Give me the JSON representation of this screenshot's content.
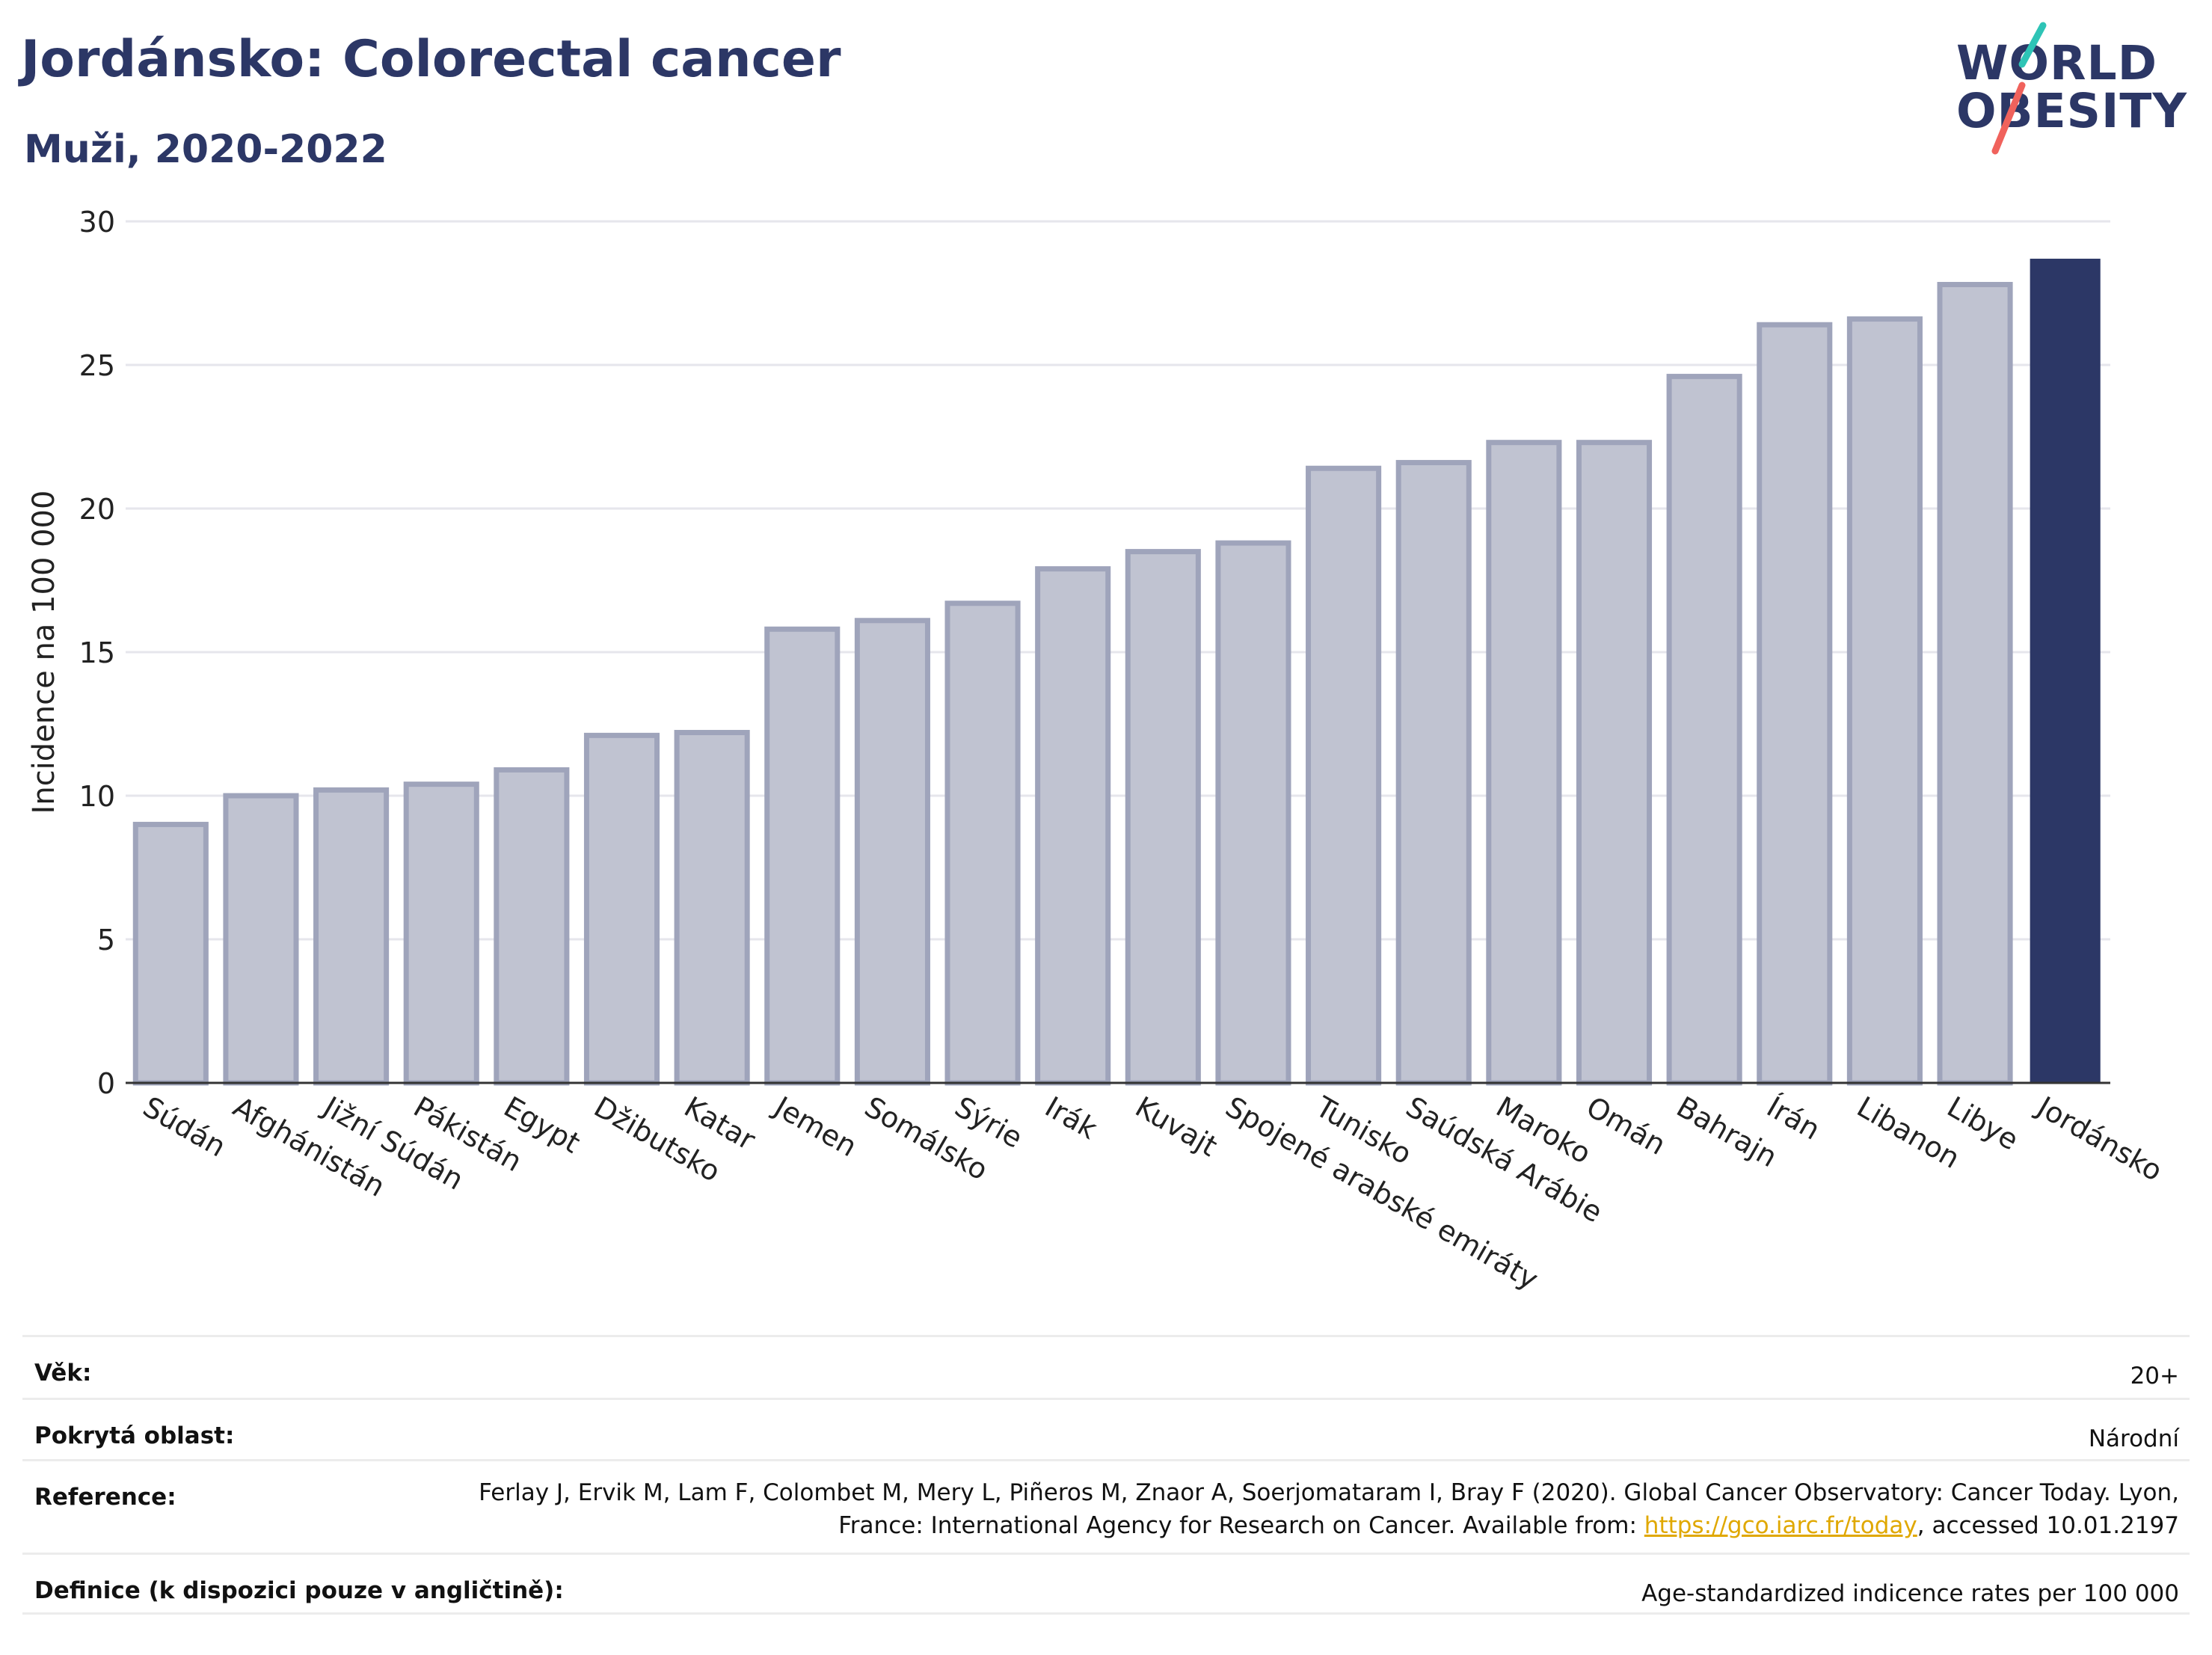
{
  "header": {
    "title": "Jordánsko: Colorectal cancer",
    "subtitle": "Muži, 2020-2022"
  },
  "logo": {
    "line1": "WORLD",
    "line2": "OBESITY",
    "accent_colors": [
      "#2ec4b6",
      "#f0625c"
    ]
  },
  "chart_data": {
    "type": "bar",
    "title": "",
    "xlabel": "",
    "ylabel": "Incidence na 100 000",
    "ylim": [
      0,
      30
    ],
    "yticks": [
      0,
      5,
      10,
      15,
      20,
      25,
      30
    ],
    "grid": true,
    "categories": [
      "Súdán",
      "Afghánistán",
      "Jižní Súdán",
      "Pákistán",
      "Egypt",
      "Džibutsko",
      "Katar",
      "Jemen",
      "Somálsko",
      "Sýrie",
      "Irák",
      "Kuvajt",
      "Spojené arabské emiráty",
      "Tunisko",
      "Saúdská Arábie",
      "Maroko",
      "Omán",
      "Bahrajn",
      "Írán",
      "Libanon",
      "Libye",
      "Jordánsko"
    ],
    "values": [
      9.0,
      10.0,
      10.2,
      10.4,
      10.9,
      12.1,
      12.2,
      15.8,
      16.1,
      16.7,
      17.9,
      18.5,
      18.8,
      21.4,
      21.6,
      22.3,
      22.3,
      24.6,
      26.4,
      26.6,
      27.8,
      28.7
    ],
    "highlight": "Jordánsko",
    "colors": {
      "bar_fill": "#c0c3d1",
      "bar_stroke": "#9fa4bb",
      "highlight": "#2c3766",
      "grid": "#e6e6ec",
      "axis": "#333333"
    }
  },
  "info": {
    "age_label": "Věk:",
    "age_value": "20+",
    "area_label": "Pokrytá oblast:",
    "area_value": "Národní",
    "ref_label": "Reference:",
    "ref_text_1": "Ferlay J, Ervik M, Lam F, Colombet M, Mery L, Piñeros M, Znaor A, Soerjomataram I, Bray F (2020). Global Cancer Observatory: Cancer Today. Lyon, France: International Agency for Research on Cancer. Available from: ",
    "ref_link": "https://gco.iarc.fr/today",
    "ref_text_2": ", accessed 10.01.2197",
    "def_label": "Definice (k dispozici pouze v angličtině):",
    "def_value": "Age-standardized indicence rates per 100 000"
  }
}
